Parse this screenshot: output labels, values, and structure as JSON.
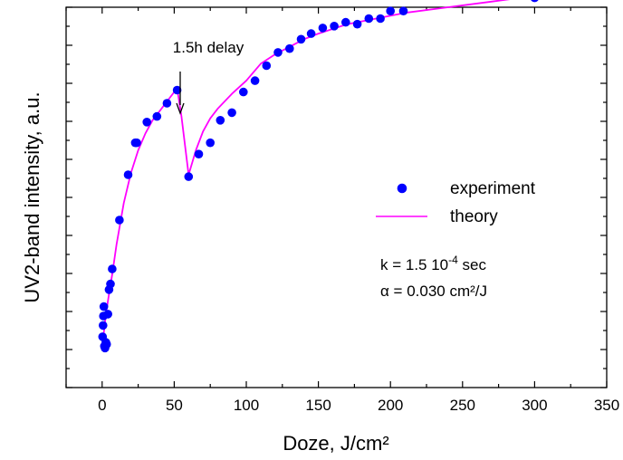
{
  "chart_data": {
    "type": "scatter",
    "xlabel": "Doze, J/cm²",
    "ylabel": "UV2-band intensity, a.u.",
    "xlim": [
      -25,
      350
    ],
    "ylim": [
      -1,
      100
    ],
    "x_ticks": [
      0,
      50,
      100,
      150,
      200,
      250,
      300,
      350
    ],
    "y_tick_labels_shown": false,
    "grid": false,
    "legend_placement": "center-right",
    "annotation": {
      "text": "1.5h delay",
      "x": 52
    },
    "params": {
      "k_prefix": "k = 1.5 10",
      "k_exp": "-4",
      "k_suffix": " sec",
      "alpha": "α = 0.030 cm²/J"
    },
    "series": [
      {
        "name": "experiment",
        "kind": "points",
        "color": "#0000ff",
        "x": [
          0.3,
          0.6,
          0.9,
          1.2,
          1.6,
          2.0,
          2.6,
          3.1,
          4.0,
          4.8,
          5.8,
          7.0,
          12.0,
          18.0,
          23.0,
          24.0,
          31.0,
          38.0,
          45.0,
          52.0,
          60.0,
          67.0,
          75.0,
          82.0,
          90.0,
          98.0,
          106.0,
          114.0,
          122.0,
          130.0,
          138.0,
          145.0,
          153.0,
          161.0,
          169.0,
          177.0,
          185.0,
          193.0,
          200.0,
          209.0,
          300.0
        ],
        "y": [
          12.5,
          15.5,
          18.0,
          20.5,
          10.0,
          9.5,
          11.0,
          10.5,
          18.5,
          25.0,
          26.5,
          30.5,
          43.5,
          55.5,
          64.0,
          64.0,
          69.5,
          71.0,
          74.5,
          78.0,
          55.0,
          61.0,
          64.0,
          70.0,
          72.0,
          77.5,
          80.5,
          84.5,
          88.0,
          89.0,
          91.5,
          93.0,
          94.5,
          95.0,
          96.0,
          95.5,
          97.0,
          97.0,
          99.0,
          99.0,
          102.5
        ]
      },
      {
        "name": "theory",
        "kind": "line",
        "color": "#ff00ff",
        "x": [
          0.0,
          1.0,
          2.0,
          3.0,
          5.0,
          7.0,
          10.0,
          15.0,
          20.0,
          25.0,
          30.0,
          35.0,
          40.0,
          45.0,
          52.0,
          55.0,
          60.0,
          65.0,
          70.0,
          75.0,
          80.0,
          90.0,
          100.0,
          110.0,
          120.0,
          130.0,
          140.0,
          150.0,
          170.0,
          190.0,
          210.0,
          240.0,
          270.0,
          300.0
        ],
        "y": [
          10.0,
          13.0,
          16.5,
          19.5,
          24.5,
          29.0,
          37.0,
          48.0,
          56.0,
          62.0,
          66.5,
          70.0,
          72.5,
          75.0,
          78.5,
          71.0,
          55.5,
          62.0,
          67.0,
          70.5,
          73.0,
          77.0,
          80.5,
          85.0,
          87.5,
          89.5,
          91.5,
          93.0,
          95.5,
          97.0,
          98.5,
          100.0,
          101.5,
          103.0
        ]
      }
    ]
  }
}
